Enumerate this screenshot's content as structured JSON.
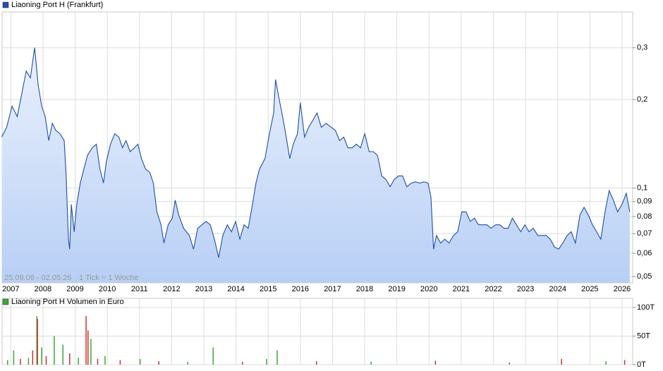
{
  "chart_data": [
    {
      "type": "area",
      "log": true,
      "grid": true,
      "color": "#1f4fa8",
      "series": [
        {
          "name": "Liaoning Port H (Frankfurt)",
          "color": "#1f4fa8",
          "x": [
            2006.72,
            2006.87,
            2007.04,
            2007.2,
            2007.35,
            2007.48,
            2007.61,
            2007.74,
            2007.85,
            2007.96,
            2008.07,
            2008.18,
            2008.29,
            2008.4,
            2008.53,
            2008.66,
            2008.72,
            2008.79,
            2008.83,
            2008.88,
            2008.97,
            2009.05,
            2009.16,
            2009.27,
            2009.38,
            2009.53,
            2009.66,
            2009.77,
            2009.88,
            2009.97,
            2010.1,
            2010.23,
            2010.36,
            2010.47,
            2010.58,
            2010.71,
            2010.84,
            2010.95,
            2011.06,
            2011.19,
            2011.32,
            2011.43,
            2011.54,
            2011.67,
            2011.76,
            2011.89,
            2012.02,
            2012.11,
            2012.22,
            2012.37,
            2012.55,
            2012.68,
            2012.81,
            2012.94,
            2013.07,
            2013.2,
            2013.33,
            2013.46,
            2013.59,
            2013.73,
            2013.86,
            2013.99,
            2014.12,
            2014.25,
            2014.38,
            2014.51,
            2014.62,
            2014.73,
            2014.9,
            2015.04,
            2015.17,
            2015.23,
            2015.34,
            2015.45,
            2015.56,
            2015.67,
            2015.78,
            2015.91,
            2016.0,
            2016.13,
            2016.26,
            2016.39,
            2016.52,
            2016.65,
            2016.8,
            2016.96,
            2017.09,
            2017.22,
            2017.35,
            2017.48,
            2017.61,
            2017.74,
            2017.87,
            2018.0,
            2018.14,
            2018.27,
            2018.4,
            2018.53,
            2018.66,
            2018.79,
            2018.92,
            2019.05,
            2019.18,
            2019.31,
            2019.45,
            2019.58,
            2019.71,
            2019.84,
            2019.97,
            2020.06,
            2020.14,
            2020.23,
            2020.36,
            2020.49,
            2020.62,
            2020.76,
            2020.89,
            2021.02,
            2021.15,
            2021.28,
            2021.41,
            2021.54,
            2021.67,
            2021.8,
            2021.93,
            2022.07,
            2022.2,
            2022.33,
            2022.46,
            2022.59,
            2022.72,
            2022.85,
            2022.98,
            2023.11,
            2023.24,
            2023.38,
            2023.51,
            2023.64,
            2023.77,
            2023.9,
            2024.03,
            2024.16,
            2024.29,
            2024.42,
            2024.55,
            2024.69,
            2024.82,
            2024.95,
            2025.08,
            2025.21,
            2025.34,
            2025.47,
            2025.6,
            2025.73,
            2025.86,
            2026.0,
            2026.13,
            2026.24
          ],
          "values": [
            0.149,
            0.161,
            0.19,
            0.175,
            0.212,
            0.25,
            0.237,
            0.3,
            0.224,
            0.19,
            0.175,
            0.145,
            0.166,
            0.157,
            0.153,
            0.145,
            0.11,
            0.067,
            0.062,
            0.088,
            0.071,
            0.088,
            0.104,
            0.116,
            0.129,
            0.137,
            0.141,
            0.116,
            0.104,
            0.123,
            0.141,
            0.153,
            0.149,
            0.137,
            0.145,
            0.133,
            0.137,
            0.141,
            0.126,
            0.116,
            0.113,
            0.104,
            0.083,
            0.075,
            0.065,
            0.075,
            0.079,
            0.091,
            0.081,
            0.073,
            0.069,
            0.062,
            0.073,
            0.075,
            0.077,
            0.075,
            0.067,
            0.058,
            0.069,
            0.075,
            0.071,
            0.077,
            0.067,
            0.075,
            0.073,
            0.088,
            0.104,
            0.116,
            0.126,
            0.153,
            0.18,
            0.234,
            0.201,
            0.175,
            0.149,
            0.126,
            0.141,
            0.153,
            0.195,
            0.149,
            0.161,
            0.17,
            0.18,
            0.161,
            0.166,
            0.161,
            0.157,
            0.145,
            0.149,
            0.137,
            0.137,
            0.141,
            0.137,
            0.153,
            0.133,
            0.133,
            0.129,
            0.11,
            0.107,
            0.101,
            0.107,
            0.11,
            0.11,
            0.101,
            0.104,
            0.105,
            0.104,
            0.105,
            0.104,
            0.093,
            0.062,
            0.069,
            0.065,
            0.067,
            0.065,
            0.069,
            0.071,
            0.083,
            0.083,
            0.077,
            0.079,
            0.075,
            0.075,
            0.075,
            0.073,
            0.075,
            0.075,
            0.073,
            0.073,
            0.079,
            0.075,
            0.071,
            0.075,
            0.071,
            0.073,
            0.069,
            0.069,
            0.069,
            0.067,
            0.063,
            0.062,
            0.065,
            0.069,
            0.071,
            0.065,
            0.081,
            0.086,
            0.081,
            0.075,
            0.071,
            0.067,
            0.083,
            0.098,
            0.091,
            0.083,
            0.088,
            0.096,
            0.083
          ]
        }
      ],
      "xlim": [
        2006.73,
        2026.33
      ],
      "xticks": [
        2007,
        2008,
        2009,
        2010,
        2011,
        2012,
        2013,
        2014,
        2015,
        2016,
        2017,
        2018,
        2019,
        2020,
        2021,
        2022,
        2023,
        2024,
        2025,
        2026
      ],
      "ylim": [
        0.0476,
        0.397
      ],
      "yticks": [
        {
          "value": 0.05,
          "label": "0,05"
        },
        {
          "value": 0.06,
          "label": "0,06"
        },
        {
          "value": 0.07,
          "label": "0,07"
        },
        {
          "value": 0.08,
          "label": "0,08"
        },
        {
          "value": 0.09,
          "label": "0,09"
        },
        {
          "value": 0.1,
          "label": "0,1"
        },
        {
          "value": 0.2,
          "label": "0,2"
        },
        {
          "value": 0.3,
          "label": "0,3"
        }
      ],
      "annotations": [
        "25.09.06 - 02.05.26",
        "1 Tick = 1 Woche"
      ]
    },
    {
      "type": "bar",
      "grid": true,
      "series": [
        {
          "name": "Liaoning Port H Volumen in Euro",
          "color": "#3aa83a",
          "x": [
            2006.9,
            2007.09,
            2007.3,
            2007.55,
            2007.68,
            2007.81,
            2007.83,
            2007.96,
            2008.1,
            2008.35,
            2008.62,
            2008.83,
            2009.1,
            2009.34,
            2009.4,
            2009.49,
            2009.7,
            2009.93,
            2010.4,
            2011.02,
            2011.6,
            2012.5,
            2013.29,
            2014.2,
            2014.95,
            2015.28,
            2016.5,
            2018.2,
            2020.2,
            2022.5,
            2024.12,
            2025.5,
            2026.08
          ],
          "values": [
            8,
            25,
            10,
            12,
            25,
            85,
            80,
            30,
            15,
            50,
            35,
            20,
            12,
            85,
            60,
            45,
            10,
            15,
            8,
            10,
            6,
            5,
            30,
            5,
            10,
            25,
            6,
            5,
            7,
            4,
            10,
            6,
            8
          ],
          "colors": [
            "#3aa83a",
            "#3aa83a",
            "#d03030",
            "#3aa83a",
            "#d03030",
            "#3aa83a",
            "#d03030",
            "#3aa83a",
            "#d03030",
            "#3aa83a",
            "#3aa83a",
            "#d03030",
            "#3aa83a",
            "#d03030",
            "#d03030",
            "#3aa83a",
            "#d03030",
            "#3aa83a",
            "#d03030",
            "#3aa83a",
            "#d03030",
            "#3aa83a",
            "#3aa83a",
            "#d03030",
            "#3aa83a",
            "#3aa83a",
            "#d03030",
            "#3aa83a",
            "#d03030",
            "#3aa83a",
            "#d03030",
            "#3aa83a",
            "#d03030"
          ]
        }
      ],
      "xlim": [
        2006.73,
        2026.33
      ],
      "xticks": [
        2007,
        2008,
        2009,
        2010,
        2011,
        2012,
        2013,
        2014,
        2015,
        2016,
        2017,
        2018,
        2019,
        2020,
        2021,
        2022,
        2023,
        2024,
        2025,
        2026
      ],
      "ylim": [
        0,
        116
      ],
      "yticks": [
        {
          "value": 0,
          "label": "0T"
        },
        {
          "value": 50,
          "label": "50T"
        },
        {
          "value": 100,
          "label": "100T"
        }
      ]
    }
  ]
}
